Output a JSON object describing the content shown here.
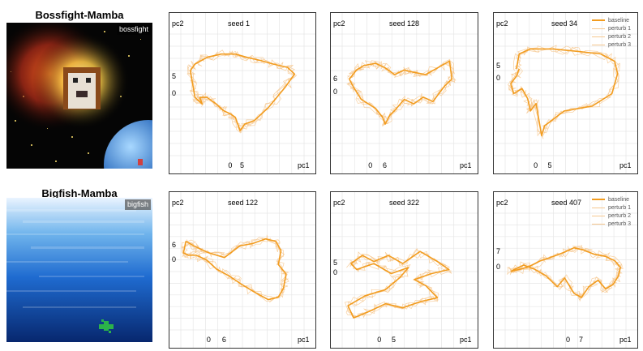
{
  "rows": [
    {
      "title": "Bossfight-Mamba",
      "game_tag": "bossfight"
    },
    {
      "title": "Bigfish-Mamba",
      "game_tag": "bigfish"
    }
  ],
  "colors": {
    "baseline": "#F29C1F",
    "perturb": "#F6C890"
  },
  "legend": [
    "baseline",
    "perturb 1",
    "perturb 2",
    "perturb 3"
  ],
  "chart_data": [
    {
      "type": "line",
      "title": "seed 1",
      "xlabel": "pc1",
      "ylabel": "pc2",
      "xticks": [
        0,
        5
      ],
      "yticks": [
        0,
        5
      ],
      "xlim": [
        -21,
        31
      ],
      "ylim": [
        -18.5,
        18
      ],
      "series": [
        {
          "name": "baseline",
          "x": [
            -17,
            -15,
            -10,
            -4,
            2,
            7,
            13,
            18,
            24,
            27,
            23,
            16,
            10,
            6,
            4,
            2,
            0,
            -3,
            -6,
            -10,
            -13,
            -12,
            -15,
            -16,
            -17
          ],
          "y": [
            7,
            9,
            11,
            12,
            12,
            11,
            10,
            9,
            8,
            6,
            2,
            -4,
            -8,
            -9,
            -11,
            -7,
            -6,
            -5,
            -3,
            -1,
            -1,
            -3,
            -1,
            3,
            7
          ]
        }
      ]
    },
    {
      "type": "line",
      "title": "seed 128",
      "xlabel": "pc1",
      "ylabel": "pc2",
      "xticks": [
        0,
        6
      ],
      "yticks": [
        0,
        6
      ],
      "xlim": [
        -12,
        40
      ],
      "ylim": [
        -28,
        26
      ],
      "series": [
        {
          "name": "baseline",
          "x": [
            -9,
            -6,
            -3,
            2,
            6,
            10,
            14,
            18,
            23,
            28,
            33,
            34,
            31,
            26,
            22,
            18,
            14,
            10,
            8,
            6,
            5,
            2,
            -4,
            -7,
            -9
          ],
          "y": [
            6,
            10,
            12,
            13,
            11,
            8,
            10,
            9,
            8,
            11,
            14,
            6,
            3,
            -4,
            -2,
            -5,
            -3,
            -8,
            -10,
            -14,
            -11,
            -7,
            -3,
            2,
            6
          ]
        }
      ]
    },
    {
      "type": "line",
      "title": "seed 34",
      "xlabel": "pc1",
      "ylabel": "pc2",
      "xticks": [
        0,
        5
      ],
      "yticks": [
        0,
        5
      ],
      "xlim": [
        -11,
        32
      ],
      "ylim": [
        -31,
        18
      ],
      "series": [
        {
          "name": "baseline",
          "x": [
            -7,
            -6,
            -2,
            6,
            15,
            23,
            28,
            29,
            27,
            20,
            10,
            3,
            2,
            0,
            -2,
            -3,
            -5,
            -8,
            -9,
            -7,
            -6
          ],
          "y": [
            4,
            10,
            12,
            12,
            11,
            10,
            7,
            2,
            -6,
            -11,
            -13,
            -19,
            -23,
            -10,
            -13,
            -8,
            -4,
            -6,
            -2,
            1,
            4
          ]
        }
      ]
    },
    {
      "type": "line",
      "title": "seed 122",
      "xlabel": "pc1",
      "ylabel": "pc2",
      "xticks": [
        0,
        6
      ],
      "yticks": [
        0,
        6
      ],
      "xlim": [
        -11,
        37
      ],
      "ylim": [
        -30,
        20
      ],
      "series": [
        {
          "name": "baseline",
          "x": [
            -9,
            -6,
            -4,
            0,
            6,
            12,
            17,
            22,
            26,
            28,
            27,
            30,
            29,
            27,
            23,
            18,
            12,
            8,
            3,
            -1,
            -5,
            -8,
            -10,
            -9
          ],
          "y": [
            8,
            6,
            5,
            3,
            1,
            6,
            7,
            9,
            8,
            4,
            -2,
            -6,
            -12,
            -16,
            -17,
            -14,
            -10,
            -7,
            -4,
            0,
            2,
            2,
            3,
            8
          ]
        }
      ]
    },
    {
      "type": "line",
      "title": "seed 322",
      "xlabel": "pc1",
      "ylabel": "pc2",
      "xticks": [
        0,
        5
      ],
      "yticks": [
        0,
        5
      ],
      "xlim": [
        -13,
        30
      ],
      "ylim": [
        -28,
        30
      ],
      "series": [
        {
          "name": "baseline",
          "x": [
            -10,
            -6,
            -2,
            3,
            8,
            14,
            20,
            24,
            18,
            12,
            16,
            20,
            14,
            8,
            2,
            -4,
            -9,
            -11,
            -5,
            2,
            7,
            10,
            4,
            -2,
            -8,
            -10
          ],
          "y": [
            5,
            9,
            6,
            9,
            5,
            11,
            6,
            2,
            0,
            -3,
            -6,
            -12,
            -14,
            -17,
            -15,
            -19,
            -22,
            -16,
            -11,
            -8,
            -2,
            3,
            0,
            5,
            2,
            5
          ]
        }
      ]
    },
    {
      "type": "line",
      "title": "seed 407",
      "xlabel": "pc1",
      "ylabel": "pc2",
      "xticks": [
        0,
        7
      ],
      "yticks": [
        0,
        7
      ],
      "xlim": [
        -34,
        31
      ],
      "ylim": [
        -29,
        25
      ],
      "series": [
        {
          "name": "baseline",
          "x": [
            -31,
            -22,
            -15,
            -8,
            -2,
            3,
            8,
            14,
            20,
            25,
            28,
            27,
            24,
            20,
            16,
            11,
            7,
            3,
            -2,
            -6,
            -12,
            -18,
            -24,
            -29,
            -31
          ],
          "y": [
            -2,
            0,
            3,
            5,
            7,
            9,
            8,
            6,
            5,
            3,
            0,
            -4,
            -8,
            -10,
            -6,
            -9,
            -14,
            -12,
            -5,
            -9,
            -4,
            -1,
            1,
            -1,
            -2
          ]
        }
      ]
    }
  ]
}
